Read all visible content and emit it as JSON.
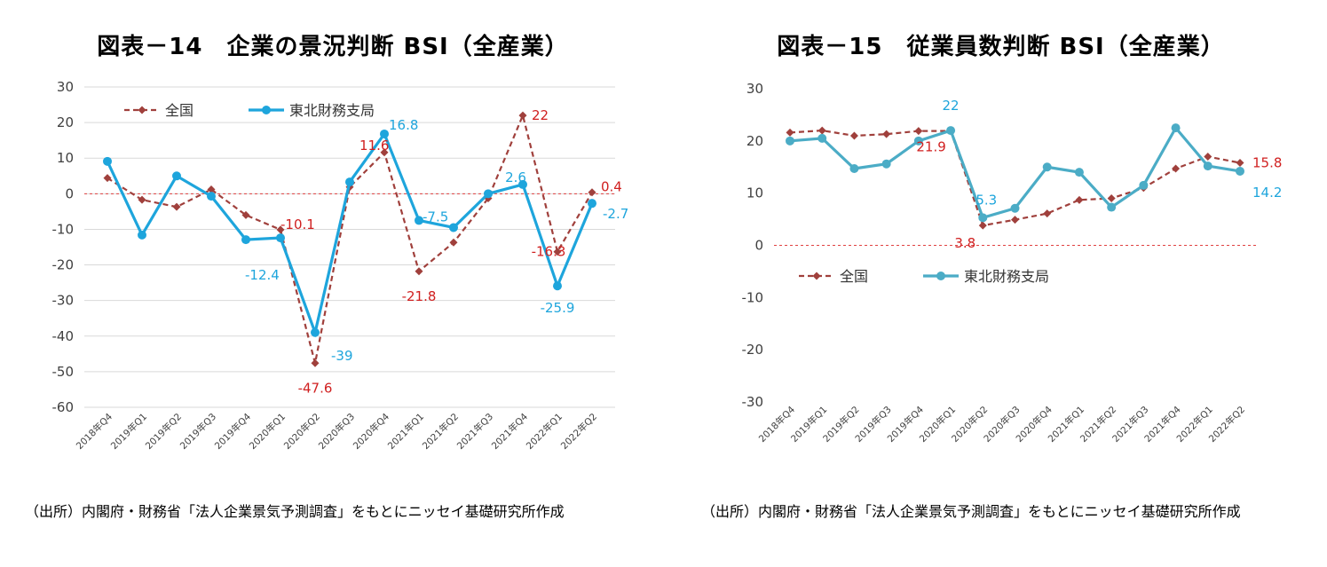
{
  "charts": [
    {
      "title": "図表－14　企業の景況判断 BSI（全産業）",
      "source": "（出所）内閣府・財務省「法人企業景気予測調査」をもとにニッセイ基礎研究所作成",
      "chart_data": {
        "type": "line",
        "categories": [
          "2018年Q4",
          "2019年Q1",
          "2019年Q2",
          "2019年Q3",
          "2019年Q4",
          "2020年Q1",
          "2020年Q2",
          "2020年Q3",
          "2020年Q4",
          "2021年Q1",
          "2021年Q2",
          "2021年Q3",
          "2021年Q4",
          "2022年Q1",
          "2022年Q2"
        ],
        "ylim": [
          -60,
          30
        ],
        "yticks": [
          30,
          20,
          10,
          0,
          -10,
          -20,
          -30,
          -40,
          -50,
          -60
        ],
        "grid": true,
        "legend_position": "top-left",
        "series": [
          {
            "name": "全国",
            "style": "dashed",
            "marker": "diamond",
            "color": "#a0403c",
            "values": [
              4.4,
              -1.7,
              -3.7,
              1.2,
              -6.0,
              -10.1,
              -47.6,
              1.9,
              11.6,
              -21.8,
              -13.7,
              -1.3,
              22.0,
              -16.3,
              0.4
            ]
          },
          {
            "name": "東北財務支局",
            "style": "solid",
            "marker": "circle",
            "color": "#1ea5dc",
            "values": [
              9.1,
              -11.6,
              5.0,
              -0.7,
              -12.9,
              -12.4,
              -39.0,
              3.3,
              16.8,
              -7.5,
              -9.5,
              0.0,
              2.6,
              -25.9,
              -2.7
            ]
          }
        ],
        "data_labels": [
          {
            "series": 0,
            "index": 5,
            "text": "-10.1"
          },
          {
            "series": 0,
            "index": 6,
            "text": "-47.6"
          },
          {
            "series": 0,
            "index": 8,
            "text": "11.6"
          },
          {
            "series": 0,
            "index": 9,
            "text": "-21.8"
          },
          {
            "series": 0,
            "index": 12,
            "text": "22"
          },
          {
            "series": 0,
            "index": 13,
            "text": "-16.3"
          },
          {
            "series": 0,
            "index": 14,
            "text": "0.4"
          },
          {
            "series": 1,
            "index": 5,
            "text": "-12.4"
          },
          {
            "series": 1,
            "index": 6,
            "text": "-39"
          },
          {
            "series": 1,
            "index": 8,
            "text": "16.8"
          },
          {
            "series": 1,
            "index": 9,
            "text": "-7.5"
          },
          {
            "series": 1,
            "index": 12,
            "text": "2.6"
          },
          {
            "series": 1,
            "index": 13,
            "text": "-25.9"
          },
          {
            "series": 1,
            "index": 14,
            "text": "-2.7"
          }
        ]
      }
    },
    {
      "title": "図表－15　従業員数判断 BSI（全産業）",
      "source": "（出所）内閣府・財務省「法人企業景気予測調査」をもとにニッセイ基礎研究所作成",
      "chart_data": {
        "type": "line",
        "categories": [
          "2018年Q4",
          "2019年Q1",
          "2019年Q2",
          "2019年Q3",
          "2019年Q4",
          "2020年Q1",
          "2020年Q2",
          "2020年Q3",
          "2020年Q4",
          "2021年Q1",
          "2021年Q2",
          "2021年Q3",
          "2021年Q4",
          "2022年Q1",
          "2022年Q2"
        ],
        "ylim": [
          -30,
          30
        ],
        "yticks": [
          30,
          20,
          10,
          0,
          -10,
          -20,
          -30
        ],
        "grid": false,
        "legend_position": "middle-left",
        "series": [
          {
            "name": "全国",
            "style": "dashed",
            "marker": "diamond",
            "color": "#a0403c",
            "values": [
              21.6,
              22.0,
              21.0,
              21.3,
              21.9,
              21.9,
              3.8,
              4.9,
              6.1,
              8.7,
              9.0,
              11.0,
              14.7,
              17.0,
              15.8
            ]
          },
          {
            "name": "東北財務支局",
            "style": "solid",
            "marker": "circle",
            "color": "#4bacc6",
            "values": [
              20.0,
              20.5,
              14.7,
              15.6,
              20.0,
              22.0,
              5.3,
              7.1,
              15.0,
              14.0,
              7.3,
              11.5,
              22.5,
              15.2,
              14.2
            ]
          }
        ],
        "data_labels": [
          {
            "series": 0,
            "index": 5,
            "text": "21.9"
          },
          {
            "series": 0,
            "index": 6,
            "text": "3.8"
          },
          {
            "series": 0,
            "index": 14,
            "text": "15.8"
          },
          {
            "series": 1,
            "index": 5,
            "text": "22"
          },
          {
            "series": 1,
            "index": 6,
            "text": "5.3"
          },
          {
            "series": 1,
            "index": 14,
            "text": "14.2"
          }
        ]
      }
    }
  ]
}
